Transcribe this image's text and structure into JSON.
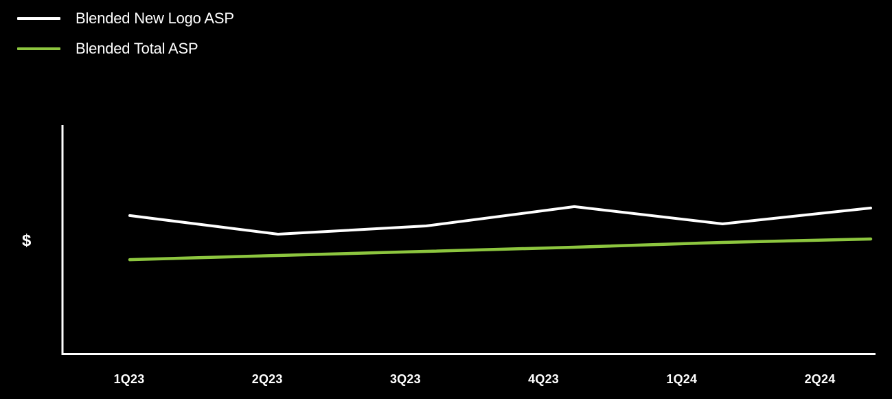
{
  "legend": {
    "items": [
      {
        "label": "Blended New Logo ASP",
        "color": "#FFFFFF",
        "swatch_icon": "white-line-swatch-icon"
      },
      {
        "label": "Blended Total ASP",
        "color": "#8DC63F",
        "swatch_icon": "green-line-swatch-icon"
      }
    ]
  },
  "colors": {
    "background": "#000000",
    "axis": "#FFFFFF",
    "text": "#FFFFFF",
    "series_new_logo": "#FFFFFF",
    "series_total": "#8DC63F"
  },
  "chart_data": {
    "type": "line",
    "categories": [
      "1Q23",
      "2Q23",
      "3Q23",
      "4Q23",
      "1Q24",
      "2Q24"
    ],
    "series": [
      {
        "name": "Blended New Logo ASP",
        "color": "#FFFFFF",
        "values": [
          60.5,
          52.4,
          56.0,
          64.4,
          56.9,
          63.8
        ]
      },
      {
        "name": "Blended Total ASP",
        "color": "#8DC63F",
        "values": [
          41.3,
          43.1,
          44.9,
          46.7,
          48.8,
          50.3
        ]
      }
    ],
    "title": "",
    "xlabel": "",
    "ylabel": "$",
    "ylim": [
      0,
      100
    ],
    "value_scale": "relative estimate; y-axis shows only a $ symbol, no numeric tick labels",
    "grid": false,
    "legend_position": "top-left"
  }
}
